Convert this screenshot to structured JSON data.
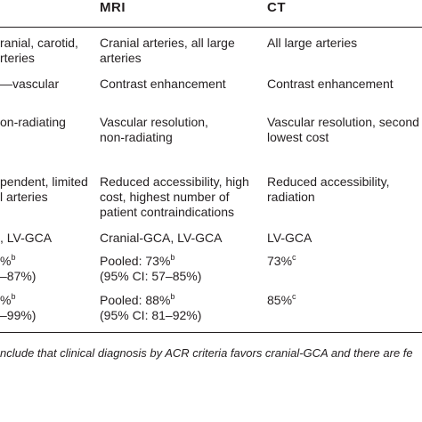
{
  "headers": {
    "col2": "MRI",
    "col3": "CT"
  },
  "rows": [
    {
      "col1": [
        "ranial, carotid,",
        "rteries"
      ],
      "col2": [
        "Cranial arteries, all large",
        "arteries"
      ],
      "col3": [
        "All large arteries"
      ]
    },
    {
      "col1": [
        "—vascular"
      ],
      "col2": [
        "Contrast enhancement"
      ],
      "col3": [
        "Contrast enhancement"
      ]
    },
    {
      "col1": [
        "on-radiating"
      ],
      "col2": [
        "Vascular resolution,",
        "non-radiating"
      ],
      "col3": [
        "Vascular resolution, second",
        "lowest cost"
      ]
    },
    {
      "col1": [
        "pendent, limited",
        "l arteries"
      ],
      "col2": [
        "Reduced accessibility, high",
        "cost, highest number of",
        "patient contraindications"
      ],
      "col3": [
        "Reduced accessibility,",
        "radiation"
      ]
    },
    {
      "col1": [
        ", LV-GCA"
      ],
      "col2": [
        "Cranial-GCA, LV-GCA"
      ],
      "col3": [
        "LV-GCA"
      ]
    },
    {
      "col1": [
        "%",
        "–87%)"
      ],
      "col1_sup": "b",
      "col2": [
        "Pooled: 73%",
        "(95% CI: 57–85%)"
      ],
      "col2_sup": "b",
      "col3": [
        "73%"
      ],
      "col3_sup": "c"
    },
    {
      "col1": [
        "%",
        "–99%)"
      ],
      "col1_sup": "b",
      "col2": [
        "Pooled: 88%",
        "(95% CI: 81–92%)"
      ],
      "col2_sup": "b",
      "col3": [
        "85%"
      ],
      "col3_sup": "c"
    }
  ],
  "footnote": "nclude that clinical diagnosis by ACR criteria favors cranial-GCA and there are fe"
}
